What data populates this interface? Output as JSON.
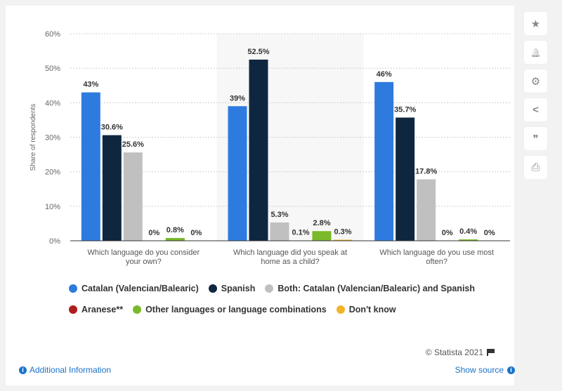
{
  "chart_data": {
    "type": "bar",
    "categories": [
      "Which language do you consider your own?",
      "Which language did you speak at home as a child?",
      "Which language do you use most often?"
    ],
    "category_lines": [
      [
        "Which language do you consider",
        "your own?"
      ],
      [
        "Which language did you speak at",
        "home as a child?"
      ],
      [
        "Which language do you use most",
        "often?"
      ]
    ],
    "series": [
      {
        "name": "Catalan (Valencian/Balearic)",
        "color": "#2e7be0",
        "values": [
          43,
          39,
          46
        ],
        "labels": [
          "43%",
          "39%",
          "46%"
        ]
      },
      {
        "name": "Spanish",
        "color": "#0f2640",
        "values": [
          30.6,
          52.5,
          35.7
        ],
        "labels": [
          "30.6%",
          "52.5%",
          "35.7%"
        ]
      },
      {
        "name": "Both: Catalan (Valencian/Balearic) and Spanish",
        "color": "#c0c0c0",
        "values": [
          25.6,
          5.3,
          17.8
        ],
        "labels": [
          "25.6%",
          "5.3%",
          "17.8%"
        ]
      },
      {
        "name": "Aranese**",
        "color": "#b01c1c",
        "values": [
          0,
          0.1,
          0
        ],
        "labels": [
          "0%",
          "0.1%",
          "0%"
        ]
      },
      {
        "name": "Other languages or language combinations",
        "color": "#7ab929",
        "values": [
          0.8,
          2.8,
          0.4
        ],
        "labels": [
          "0.8%",
          "2.8%",
          "0.4%"
        ]
      },
      {
        "name": "Don't know",
        "color": "#f0b429",
        "values": [
          0,
          0.3,
          0
        ],
        "labels": [
          "0%",
          "0.3%",
          "0%"
        ]
      }
    ],
    "ylabel": "Share of respondents",
    "xlabel": "",
    "ylim": [
      0,
      60
    ],
    "yticks": [
      "0%",
      "10%",
      "20%",
      "30%",
      "40%",
      "50%",
      "60%"
    ],
    "grid": true,
    "legend_position": "bottom",
    "highlighted_category": 1
  },
  "footer": {
    "credit": "© Statista 2021",
    "additional_info": "Additional Information",
    "show_source": "Show source"
  },
  "toolbar": {
    "buttons": [
      {
        "name": "star-icon",
        "glyph": "★"
      },
      {
        "name": "bell-icon",
        "glyph": "🔔"
      },
      {
        "name": "gear-icon",
        "glyph": "⚙"
      },
      {
        "name": "share-icon",
        "glyph": "<"
      },
      {
        "name": "quote-icon",
        "glyph": "❞"
      },
      {
        "name": "print-icon",
        "glyph": "⎙"
      }
    ]
  }
}
